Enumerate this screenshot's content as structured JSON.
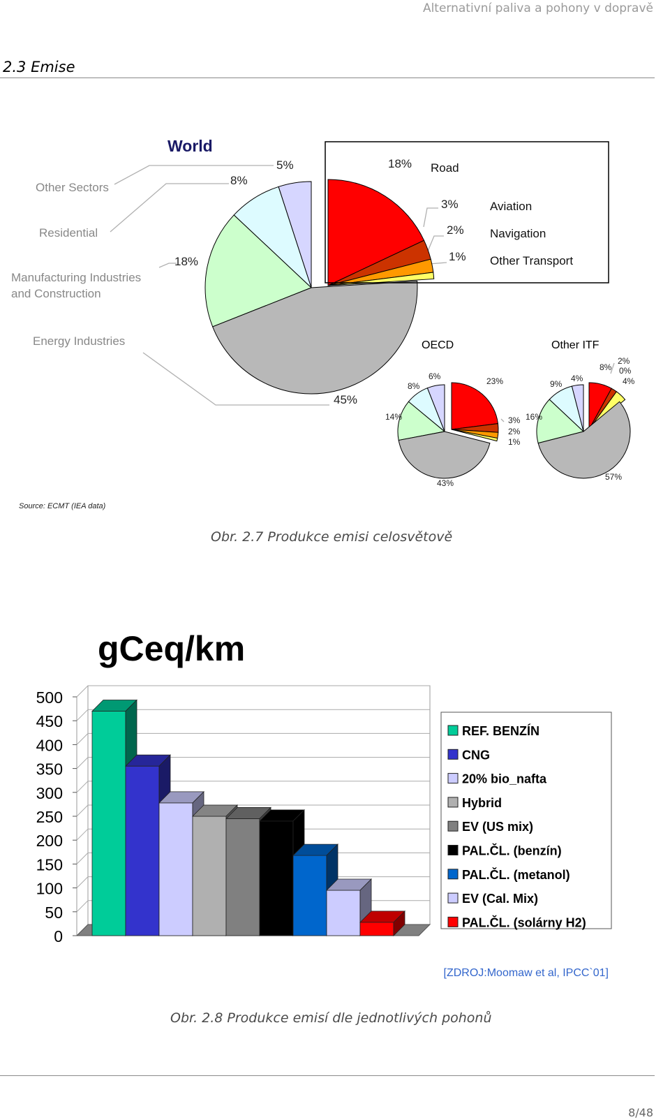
{
  "header": {
    "running_title": "Alternativní paliva a pohony v dopravě",
    "section": "2.3 Emise"
  },
  "figure1": {
    "caption": "Obr. 2.7 Produkce emisi celosvětově",
    "source": "Source: ECMT (IEA data)",
    "chart_data": [
      {
        "type": "pie",
        "title": "World",
        "series": [
          {
            "name": "Energy Industries",
            "value": 45,
            "label": "45%",
            "color": "#b8b8b8"
          },
          {
            "name": "Manufacturing Industries and Construction",
            "value": 18,
            "label": "18%",
            "color": "#ccffcc"
          },
          {
            "name": "Residential",
            "value": 8,
            "label": "8%",
            "color": "#ddfbff"
          },
          {
            "name": "Other Sectors",
            "value": 5,
            "label": "5%",
            "color": "#d6d6ff"
          },
          {
            "name": "Road",
            "value": 18,
            "label": "18%",
            "color": "#ff0000"
          },
          {
            "name": "Aviation",
            "value": 3,
            "label": "3%",
            "color": "#cc3300"
          },
          {
            "name": "Navigation",
            "value": 2,
            "label": "2%",
            "color": "#ff9900"
          },
          {
            "name": "Other Transport",
            "value": 1,
            "label": "1%",
            "color": "#ffff66"
          }
        ]
      },
      {
        "type": "pie",
        "title": "OECD",
        "series": [
          {
            "name": "Energy Industries",
            "value": 43,
            "label": "43%",
            "color": "#b8b8b8"
          },
          {
            "name": "Manufacturing Industries and Construction",
            "value": 14,
            "label": "14%",
            "color": "#ccffcc"
          },
          {
            "name": "Residential",
            "value": 8,
            "label": "8%",
            "color": "#ddfbff"
          },
          {
            "name": "Other Sectors",
            "value": 6,
            "label": "6%",
            "color": "#d6d6ff"
          },
          {
            "name": "Road",
            "value": 23,
            "label": "23%",
            "color": "#ff0000"
          },
          {
            "name": "Aviation",
            "value": 3,
            "label": "3%",
            "color": "#cc3300"
          },
          {
            "name": "Navigation",
            "value": 2,
            "label": "2%",
            "color": "#ff9900"
          },
          {
            "name": "Other Transport",
            "value": 1,
            "label": "1%",
            "color": "#ffff66"
          }
        ]
      },
      {
        "type": "pie",
        "title": "Other ITF",
        "series": [
          {
            "name": "Energy Industries",
            "value": 57,
            "label": "57%",
            "color": "#b8b8b8"
          },
          {
            "name": "Manufacturing Industries and Construction",
            "value": 16,
            "label": "16%",
            "color": "#ccffcc"
          },
          {
            "name": "Residential",
            "value": 9,
            "label": "9%",
            "color": "#ddfbff"
          },
          {
            "name": "Other Sectors",
            "value": 4,
            "label": "4%",
            "color": "#d6d6ff"
          },
          {
            "name": "Road",
            "value": 8,
            "label": "8%",
            "color": "#ff0000"
          },
          {
            "name": "Aviation",
            "value": 2,
            "label": "2%",
            "color": "#cc3300"
          },
          {
            "name": "Navigation",
            "value": 0,
            "label": "0%",
            "color": "#ff9900"
          },
          {
            "name": "Other Transport",
            "value": 4,
            "label": "4%",
            "color": "#ffff66"
          }
        ]
      }
    ]
  },
  "figure2": {
    "caption": "Obr. 2.8 Produkce emisí dle jednotlivých pohonů",
    "source": "[ZDROJ:Moomaw et al, IPCC`01]",
    "chart_data": {
      "type": "bar",
      "title": "gCeq/km",
      "ylim": [
        0,
        500
      ],
      "yticks": [
        0,
        50,
        100,
        150,
        200,
        250,
        300,
        350,
        400,
        450,
        500
      ],
      "grid": true,
      "legend_position": "right",
      "categories": [
        "REF. BENZÍN",
        "CNG",
        "20% bio_nafta",
        "Hybrid",
        "EV (US mix)",
        "PAL.ČL. (benzín)",
        "PAL.ČL. (metanol)",
        "EV (Cal. Mix)",
        "PAL.ČL. (solárny H2)"
      ],
      "values": [
        470,
        355,
        278,
        250,
        245,
        240,
        168,
        95,
        28
      ],
      "colors": [
        "#00cc99",
        "#3333cc",
        "#ccccff",
        "#b0b0b0",
        "#808080",
        "#000000",
        "#0066cc",
        "#ccccff",
        "#ff0000"
      ]
    }
  },
  "footer": {
    "page": "8/48"
  }
}
